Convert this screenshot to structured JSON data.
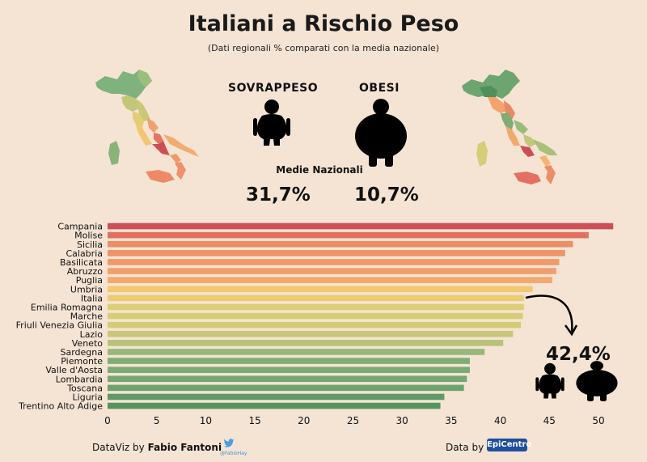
{
  "title": "Italiani a Rischio Peso",
  "subtitle": "(Dati regionali % comparati con la media nazionale)",
  "labels": {
    "overweight": "SOVRAPPESO",
    "obese": "OBESI",
    "media": "Medie Nazionali"
  },
  "values": {
    "overweight": "31,7%",
    "obese": "10,7%",
    "callout": "42,4%"
  },
  "footer": {
    "prefix": "DataViz by ",
    "author": "Fabio Fantoni",
    "data_by": "Data by",
    "source_logo": "EpiCentro",
    "handle": "@FabioHay"
  },
  "icons": {
    "social": "twitter-icon",
    "overweight": "overweight-person-icon",
    "obese": "obese-person-icon"
  },
  "colors": {
    "background": "#f5e4d4"
  },
  "chart_data": {
    "type": "bar",
    "orientation": "horizontal",
    "categories": [
      "Campania",
      "Molise",
      "Sicilia",
      "Calabria",
      "Basilicata",
      "Abruzzo",
      "Puglia",
      "Umbria",
      "Italia",
      "Emilia Romagna",
      "Marche",
      "Friuli Venezia Giulia",
      "Lazio",
      "Veneto",
      "Sardegna",
      "Piemonte",
      "Valle d'Aosta",
      "Lombardia",
      "Toscana",
      "Liguria",
      "Trentino Alto Adige"
    ],
    "values": [
      51.5,
      49.0,
      47.4,
      46.6,
      46.0,
      45.7,
      45.3,
      43.3,
      42.4,
      42.4,
      42.3,
      42.1,
      41.3,
      40.3,
      38.4,
      36.9,
      36.9,
      36.6,
      36.3,
      34.3,
      33.9
    ],
    "colors": [
      "#cd4f55",
      "#e2705e",
      "#ed8e67",
      "#ef9368",
      "#f0996a",
      "#f19f6c",
      "#f2a86e",
      "#f4c870",
      "#eacc73",
      "#dccf77",
      "#d8cd77",
      "#d4cb77",
      "#c8c778",
      "#b9c277",
      "#96b879",
      "#7fad76",
      "#7aab75",
      "#74a772",
      "#6ea370",
      "#5e9967",
      "#56935f"
    ],
    "xticks": [
      0,
      5,
      10,
      15,
      20,
      25,
      30,
      35,
      40,
      45,
      50
    ],
    "xlim": [
      0,
      52
    ],
    "xlabel": "",
    "ylabel": ""
  }
}
